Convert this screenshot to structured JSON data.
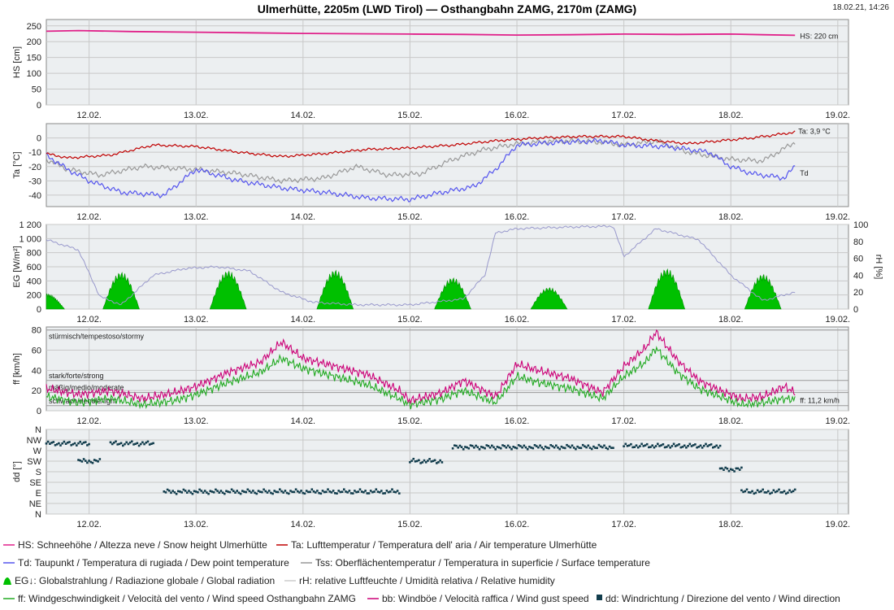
{
  "header": {
    "title": "Ulmerhütte, 2205m (LWD Tirol) — Osthangbahn ZAMG, 2170m (ZAMG)",
    "timestamp": "18.02.21, 14:26"
  },
  "colors": {
    "hs": "#e0218a",
    "ta": "#c00000",
    "td": "#5555ee",
    "tss": "#999999",
    "eg": "#00c000",
    "rh": "#9999cc",
    "ff": "#22aa22",
    "bb": "#cc0077",
    "dd": "#123d4d"
  },
  "chart_data": [
    {
      "type": "line",
      "ylabel": "HS [cm]",
      "ylim": [
        0,
        270
      ],
      "yticks": [
        0,
        50,
        100,
        150,
        200,
        250
      ],
      "x_labels": [
        "12.02.",
        "13.02.",
        "14.02.",
        "15.02.",
        "16.02.",
        "17.02.",
        "18.02.",
        "19.02."
      ],
      "series": [
        {
          "name": "HS",
          "x": [
            11.6,
            11.9,
            12.4,
            13.0,
            13.5,
            14.0,
            14.5,
            15.0,
            15.5,
            16.0,
            16.5,
            17.0,
            17.5,
            18.0,
            18.3,
            18.6
          ],
          "values": [
            233,
            235,
            232,
            230,
            228,
            226,
            225,
            224,
            223,
            221,
            222,
            224,
            223,
            224,
            222,
            220
          ]
        }
      ],
      "annotation": "HS: 220 cm"
    },
    {
      "type": "line",
      "ylabel": "Ta [°C]",
      "ylim": [
        -48,
        10
      ],
      "yticks": [
        -40,
        -30,
        -20,
        -10,
        0
      ],
      "x_labels": [
        "12.02.",
        "13.02.",
        "14.02.",
        "15.02.",
        "16.02.",
        "17.02.",
        "18.02.",
        "19.02."
      ],
      "series": [
        {
          "name": "Ta",
          "x": [
            11.6,
            11.8,
            12.2,
            12.6,
            13.0,
            13.4,
            13.8,
            14.2,
            14.6,
            15.0,
            15.4,
            15.8,
            16.2,
            16.6,
            17.0,
            17.3,
            17.6,
            17.9,
            18.2,
            18.5,
            18.6
          ],
          "values": [
            -11,
            -14,
            -12,
            -5,
            -6,
            -10,
            -13,
            -11,
            -8,
            -7,
            -5,
            -2,
            0,
            1,
            1,
            -2,
            -4,
            -2,
            0,
            3,
            4
          ]
        },
        {
          "name": "Td",
          "x": [
            11.6,
            11.8,
            12.0,
            12.3,
            12.7,
            13.0,
            13.4,
            13.8,
            14.2,
            14.6,
            15.0,
            15.3,
            15.6,
            15.8,
            16.0,
            16.4,
            16.8,
            17.0,
            17.4,
            17.8,
            18.0,
            18.2,
            18.5,
            18.6
          ],
          "values": [
            -12,
            -22,
            -30,
            -38,
            -40,
            -22,
            -30,
            -35,
            -38,
            -42,
            -43,
            -38,
            -34,
            -22,
            -5,
            -3,
            -2,
            -5,
            -6,
            -10,
            -20,
            -25,
            -28,
            -20
          ]
        },
        {
          "name": "Tss",
          "x": [
            11.6,
            11.8,
            12.1,
            12.5,
            13.0,
            13.4,
            13.8,
            14.2,
            14.5,
            14.8,
            15.1,
            15.4,
            15.7,
            16.0,
            16.4,
            16.8,
            17.0,
            17.3,
            17.6,
            18.0,
            18.3,
            18.6
          ],
          "values": [
            -15,
            -22,
            -26,
            -20,
            -22,
            -25,
            -30,
            -28,
            -20,
            -26,
            -25,
            -15,
            -8,
            -4,
            -2,
            -3,
            -5,
            -2,
            -10,
            -15,
            -16,
            -3
          ]
        }
      ],
      "annotations": [
        "Ta: 3,9 °C",
        "Td"
      ]
    },
    {
      "type": "area",
      "ylabel": "EG [W/m²]",
      "ylim": [
        0,
        1200
      ],
      "yticks": [
        0,
        200,
        400,
        600,
        800,
        1000,
        1200
      ],
      "y2label": "rH [%]",
      "y2lim": [
        0,
        100
      ],
      "y2ticks": [
        0,
        20,
        40,
        60,
        80,
        100
      ],
      "x_labels": [
        "12.02.",
        "13.02.",
        "14.02.",
        "15.02.",
        "16.02.",
        "17.02.",
        "18.02.",
        "19.02."
      ],
      "series": [
        {
          "name": "EG",
          "peaks": [
            [
              11.6,
              220
            ],
            [
              12.3,
              530
            ],
            [
              13.3,
              550
            ],
            [
              14.3,
              560
            ],
            [
              15.4,
              450
            ],
            [
              16.3,
              310
            ],
            [
              17.4,
              580
            ],
            [
              18.3,
              500
            ]
          ]
        },
        {
          "name": "rH",
          "x": [
            11.6,
            11.9,
            12.1,
            12.3,
            12.6,
            12.9,
            13.2,
            13.5,
            13.8,
            14.1,
            14.5,
            15.0,
            15.5,
            15.7,
            15.8,
            16.0,
            16.5,
            16.9,
            17.0,
            17.3,
            17.7,
            18.0,
            18.3,
            18.6
          ],
          "values": [
            82,
            70,
            15,
            5,
            40,
            48,
            50,
            45,
            20,
            8,
            5,
            5,
            12,
            40,
            90,
            95,
            97,
            98,
            62,
            95,
            82,
            40,
            10,
            20
          ]
        }
      ]
    },
    {
      "type": "line",
      "ylabel": "ff [km/h]",
      "ylim": [
        0,
        83
      ],
      "yticks": [
        0,
        20,
        40,
        60,
        80
      ],
      "x_labels": [
        "12.02.",
        "13.02.",
        "14.02.",
        "15.02.",
        "16.02.",
        "17.02.",
        "18.02.",
        "19.02."
      ],
      "zones": [
        {
          "label": "stürmisch/tempestoso/stormy",
          "from": 80
        },
        {
          "label": "stark/forte/strong",
          "from": 30
        },
        {
          "label": "mäßig/medio/moderate",
          "from": 18
        },
        {
          "label": "schwach/debole/light",
          "from": 5
        }
      ],
      "series": [
        {
          "name": "ff",
          "x": [
            11.6,
            11.9,
            12.2,
            12.5,
            12.8,
            13.0,
            13.3,
            13.6,
            13.8,
            14.0,
            14.3,
            14.6,
            14.9,
            15.0,
            15.3,
            15.5,
            15.8,
            16.0,
            16.2,
            16.5,
            16.8,
            17.0,
            17.2,
            17.3,
            17.5,
            17.7,
            17.9,
            18.1,
            18.3,
            18.5,
            18.6
          ],
          "values": [
            14,
            8,
            12,
            6,
            10,
            16,
            28,
            38,
            52,
            42,
            34,
            26,
            12,
            6,
            12,
            20,
            8,
            34,
            28,
            22,
            12,
            34,
            48,
            62,
            38,
            22,
            14,
            6,
            8,
            12,
            11
          ]
        },
        {
          "name": "bb",
          "x": [
            11.6,
            11.9,
            12.2,
            12.5,
            12.8,
            13.0,
            13.3,
            13.6,
            13.8,
            14.0,
            14.3,
            14.6,
            14.9,
            15.0,
            15.3,
            15.5,
            15.8,
            16.0,
            16.2,
            16.5,
            16.8,
            17.0,
            17.2,
            17.3,
            17.5,
            17.7,
            17.9,
            18.1,
            18.3,
            18.5,
            18.6
          ],
          "values": [
            22,
            16,
            20,
            12,
            18,
            24,
            38,
            48,
            68,
            52,
            44,
            36,
            20,
            10,
            18,
            30,
            14,
            46,
            40,
            32,
            18,
            44,
            62,
            78,
            50,
            30,
            20,
            12,
            14,
            24,
            18
          ]
        }
      ],
      "annotation": "ff: 11,2 km/h"
    },
    {
      "type": "scatter",
      "ylabel": "dd [°]",
      "y_categories": [
        "N",
        "NE",
        "E",
        "SE",
        "S",
        "SW",
        "W",
        "NW",
        "N"
      ],
      "ylim": [
        0,
        360
      ],
      "x_labels": [
        "12.02.",
        "13.02.",
        "14.02.",
        "15.02.",
        "16.02.",
        "17.02.",
        "18.02.",
        "19.02."
      ],
      "series": [
        {
          "name": "dd",
          "segments": [
            [
              11.6,
              12.0,
              300
            ],
            [
              11.9,
              12.1,
              225
            ],
            [
              12.2,
              12.6,
              300
            ],
            [
              12.7,
              14.9,
              95
            ],
            [
              15.0,
              15.3,
              225
            ],
            [
              15.4,
              16.9,
              285
            ],
            [
              17.0,
              17.9,
              290
            ],
            [
              17.9,
              18.1,
              190
            ],
            [
              18.1,
              18.6,
              95
            ]
          ]
        }
      ]
    }
  ],
  "legend": {
    "hs": "HS: Schneehöhe / Altezza neve / Snow height  Ulmerhütte",
    "ta": "Ta: Lufttemperatur / Temperatura dell' aria / Air temperature  Ulmerhütte",
    "td": "Td: Taupunkt / Temperatura di rugiada / Dew point temperature",
    "tss": "Tss: Oberflächentemperatur / Temperatura in superficie / Surface temperature",
    "eg": "EG↓: Globalstrahlung / Radiazione globale / Global radiation",
    "rh": "rH: relative Luftfeuchte / Umidità relativa / Relative humidity",
    "ff": "ff: Windgeschwindigkeit / Velocità del vento / Wind speed  Osthangbahn ZAMG",
    "bb": "bb: Windböe / Velocità raffica / Wind gust speed",
    "dd": "dd: Windrichtung / Direzione del vento / Wind direction"
  }
}
